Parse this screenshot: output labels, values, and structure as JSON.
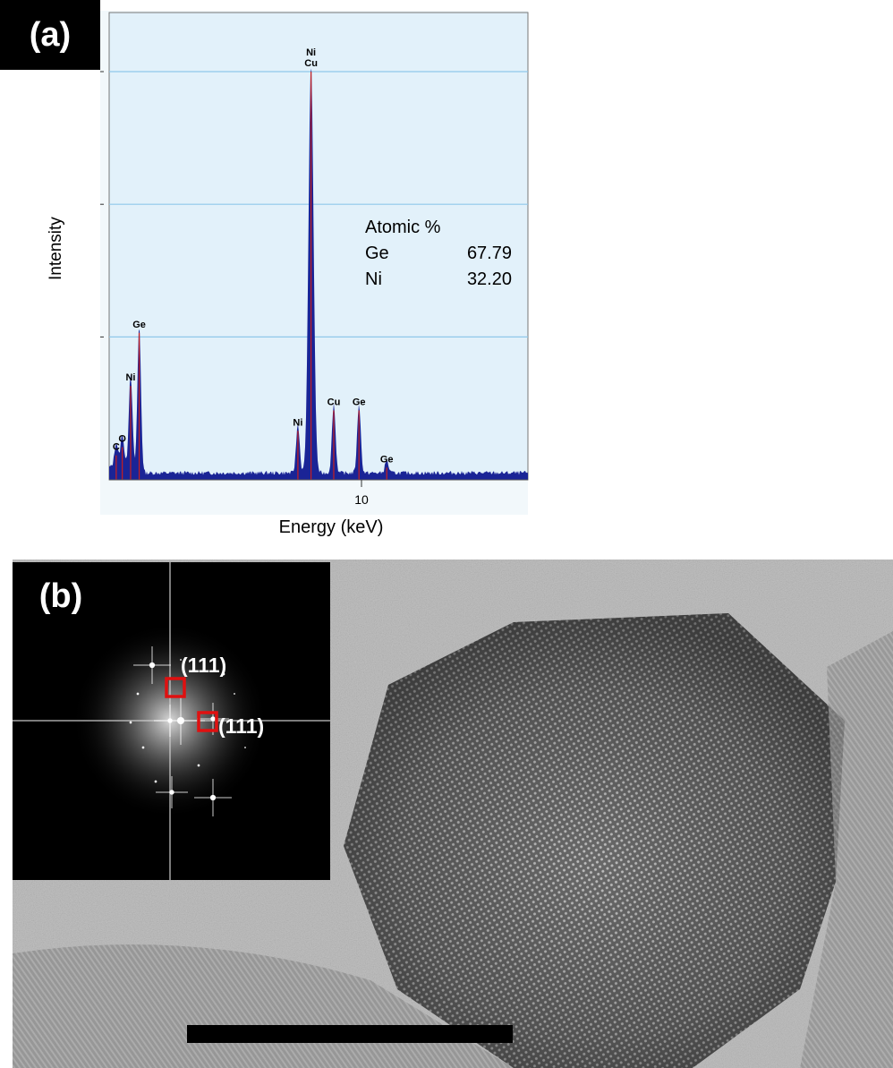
{
  "panel_a": {
    "label": "(a)"
  },
  "panel_b": {
    "label": "(b)"
  },
  "chart_data": {
    "type": "line",
    "xlabel": "Energy (keV)",
    "ylabel": "Intensity",
    "x_ticks": [
      10
    ],
    "xlim": [
      0,
      20
    ],
    "ylim": [
      0,
      100
    ],
    "grid": true,
    "peaks": [
      {
        "label": "C",
        "x": 0.28,
        "y": 6
      },
      {
        "label": "O",
        "x": 0.52,
        "y": 8
      },
      {
        "label": "Ni",
        "x": 0.85,
        "y": 23
      },
      {
        "label": "Ge",
        "x": 1.19,
        "y": 36
      },
      {
        "label": "Ni",
        "x": 7.48,
        "y": 12
      },
      {
        "label": "Ni\nCu",
        "x": 8.0,
        "y": 100
      },
      {
        "label": "Cu",
        "x": 8.9,
        "y": 17
      },
      {
        "label": "Ge",
        "x": 9.9,
        "y": 17
      },
      {
        "label": "Ge",
        "x": 11.0,
        "y": 3
      }
    ],
    "table": {
      "title": "Atomic %",
      "rows": [
        {
          "element": "Ge",
          "value": "67.79"
        },
        {
          "element": "Ni",
          "value": "32.20"
        }
      ]
    }
  },
  "fft_inset": {
    "spots": [
      {
        "label": "(111)"
      },
      {
        "label": "(111)"
      }
    ],
    "highlight_color": "#e01010"
  },
  "colors": {
    "plot_bg": "#e2f1fa",
    "spectrum_fill": "#1a2496",
    "peak_line": "#c81e1e",
    "grid": "#8fc8ea"
  }
}
